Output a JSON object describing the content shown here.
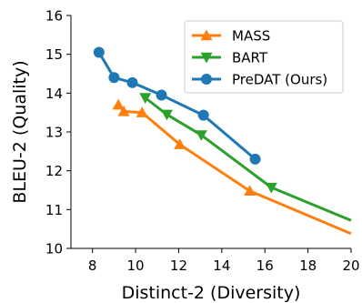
{
  "chart_data": {
    "type": "line",
    "title": "",
    "xlabel": "Distinct-2 (Diversity)",
    "ylabel": "BLEU-2 (Quality)",
    "xlim": [
      7,
      20
    ],
    "ylim": [
      10,
      16
    ],
    "xticks": [
      8,
      10,
      12,
      14,
      16,
      18,
      20
    ],
    "yticks": [
      10,
      11,
      12,
      13,
      14,
      15,
      16
    ],
    "grid": false,
    "legend_position": "top-right",
    "series": [
      {
        "name": "MASS",
        "color": "#ff7f0e",
        "marker": "triangle-up",
        "points": [
          [
            9.2,
            13.7
          ],
          [
            9.45,
            13.53
          ],
          [
            10.3,
            13.5
          ],
          [
            12.05,
            12.68
          ],
          [
            15.3,
            11.48
          ],
          [
            20.0,
            10.38
          ]
        ]
      },
      {
        "name": "BART",
        "color": "#2ca02c",
        "marker": "triangle-down",
        "points": [
          [
            10.45,
            13.88
          ],
          [
            11.45,
            13.45
          ],
          [
            13.05,
            12.92
          ],
          [
            16.3,
            11.57
          ],
          [
            20.0,
            10.72
          ]
        ]
      },
      {
        "name": "PreDAT (Ours)",
        "color": "#1f77b4",
        "marker": "circle",
        "points": [
          [
            8.3,
            15.05
          ],
          [
            9.0,
            14.4
          ],
          [
            9.85,
            14.27
          ],
          [
            11.2,
            13.95
          ],
          [
            13.15,
            13.43
          ],
          [
            15.55,
            12.3
          ]
        ]
      }
    ]
  }
}
